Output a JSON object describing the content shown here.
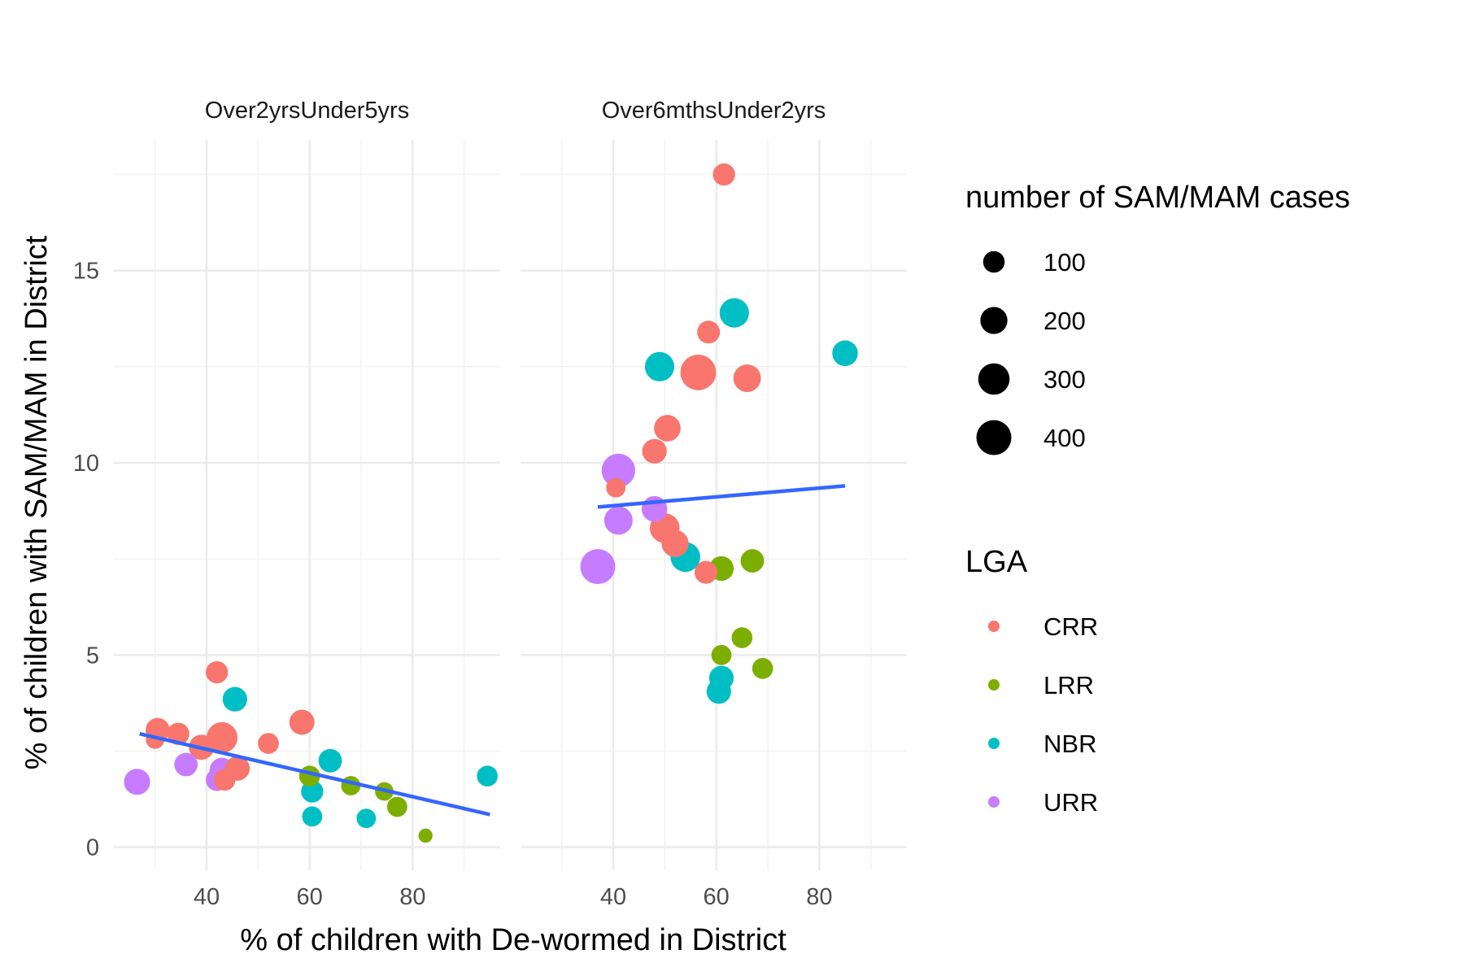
{
  "chart_data": {
    "type": "scatter",
    "xlabel": "% of children with De-wormed in District",
    "ylabel": "% of children with SAM/MAM in District",
    "xlim": [
      22,
      97
    ],
    "ylim": [
      -0.6,
      18.4
    ],
    "x_ticks": [
      40,
      60,
      80
    ],
    "y_ticks": [
      0,
      5,
      10,
      15
    ],
    "grid": true,
    "legend_position": "right",
    "size_legend": {
      "title": "number of SAM/MAM cases",
      "values": [
        100,
        200,
        300,
        400
      ]
    },
    "color_legend": {
      "title": "LGA",
      "entries": [
        {
          "label": "CRR",
          "color": "#F8766D"
        },
        {
          "label": "LRR",
          "color": "#7CAE00"
        },
        {
          "label": "NBR",
          "color": "#00BFC4"
        },
        {
          "label": "URR",
          "color": "#C77CFF"
        }
      ]
    },
    "trend_color": "#3366FF",
    "facets": [
      {
        "label": "Over2yrsUnder5yrs",
        "trend": [
          [
            27,
            2.95
          ],
          [
            95,
            0.85
          ]
        ],
        "points": [
          {
            "x": 30,
            "y": 2.8,
            "lga": "CRR",
            "n": 60
          },
          {
            "x": 30.5,
            "y": 3.05,
            "lga": "CRR",
            "n": 140
          },
          {
            "x": 34.5,
            "y": 2.95,
            "lga": "CRR",
            "n": 110
          },
          {
            "x": 39,
            "y": 2.6,
            "lga": "CRR",
            "n": 160
          },
          {
            "x": 42,
            "y": 4.55,
            "lga": "CRR",
            "n": 110
          },
          {
            "x": 43,
            "y": 2.85,
            "lga": "CRR",
            "n": 290
          },
          {
            "x": 43.5,
            "y": 1.75,
            "lga": "CRR",
            "n": 100
          },
          {
            "x": 46,
            "y": 2.05,
            "lga": "CRR",
            "n": 150
          },
          {
            "x": 52,
            "y": 2.7,
            "lga": "CRR",
            "n": 90
          },
          {
            "x": 58.5,
            "y": 3.25,
            "lga": "CRR",
            "n": 160
          },
          {
            "x": 60,
            "y": 1.85,
            "lga": "LRR",
            "n": 90
          },
          {
            "x": 68,
            "y": 1.6,
            "lga": "LRR",
            "n": 70
          },
          {
            "x": 74.5,
            "y": 1.45,
            "lga": "LRR",
            "n": 60
          },
          {
            "x": 77,
            "y": 1.05,
            "lga": "LRR",
            "n": 80
          },
          {
            "x": 82.5,
            "y": 0.3,
            "lga": "LRR",
            "n": 20
          },
          {
            "x": 45.5,
            "y": 3.85,
            "lga": "NBR",
            "n": 150
          },
          {
            "x": 64,
            "y": 2.25,
            "lga": "NBR",
            "n": 130
          },
          {
            "x": 60.5,
            "y": 1.45,
            "lga": "NBR",
            "n": 110
          },
          {
            "x": 60.5,
            "y": 0.8,
            "lga": "NBR",
            "n": 80
          },
          {
            "x": 71,
            "y": 0.75,
            "lga": "NBR",
            "n": 70
          },
          {
            "x": 94.5,
            "y": 1.85,
            "lga": "NBR",
            "n": 90
          },
          {
            "x": 26.5,
            "y": 1.7,
            "lga": "URR",
            "n": 180
          },
          {
            "x": 36,
            "y": 2.15,
            "lga": "URR",
            "n": 130
          },
          {
            "x": 42,
            "y": 1.75,
            "lga": "URR",
            "n": 110
          },
          {
            "x": 43,
            "y": 2.0,
            "lga": "URR",
            "n": 160
          }
        ]
      },
      {
        "label": "Over6mthsUnder2yrs",
        "trend": [
          [
            37,
            8.85
          ],
          [
            85,
            9.4
          ]
        ],
        "points": [
          {
            "x": 61.5,
            "y": 17.5,
            "lga": "CRR",
            "n": 110
          },
          {
            "x": 58.5,
            "y": 13.4,
            "lga": "CRR",
            "n": 120
          },
          {
            "x": 56.5,
            "y": 12.35,
            "lga": "CRR",
            "n": 420
          },
          {
            "x": 66,
            "y": 12.2,
            "lga": "CRR",
            "n": 210
          },
          {
            "x": 50.5,
            "y": 10.9,
            "lga": "CRR",
            "n": 190
          },
          {
            "x": 48,
            "y": 10.3,
            "lga": "CRR",
            "n": 150
          },
          {
            "x": 40.5,
            "y": 9.35,
            "lga": "CRR",
            "n": 70
          },
          {
            "x": 50,
            "y": 8.3,
            "lga": "CRR",
            "n": 260
          },
          {
            "x": 52,
            "y": 7.9,
            "lga": "CRR",
            "n": 200
          },
          {
            "x": 58,
            "y": 7.15,
            "lga": "CRR",
            "n": 120
          },
          {
            "x": 61,
            "y": 7.25,
            "lga": "LRR",
            "n": 150
          },
          {
            "x": 67,
            "y": 7.45,
            "lga": "LRR",
            "n": 130
          },
          {
            "x": 61,
            "y": 5.0,
            "lga": "LRR",
            "n": 80
          },
          {
            "x": 65,
            "y": 5.45,
            "lga": "LRR",
            "n": 90
          },
          {
            "x": 69,
            "y": 4.65,
            "lga": "LRR",
            "n": 90
          },
          {
            "x": 63.5,
            "y": 13.9,
            "lga": "NBR",
            "n": 250
          },
          {
            "x": 49,
            "y": 12.5,
            "lga": "NBR",
            "n": 250
          },
          {
            "x": 85,
            "y": 12.85,
            "lga": "NBR",
            "n": 170
          },
          {
            "x": 54,
            "y": 7.55,
            "lga": "NBR",
            "n": 260
          },
          {
            "x": 61,
            "y": 4.4,
            "lga": "NBR",
            "n": 150
          },
          {
            "x": 60.5,
            "y": 4.05,
            "lga": "NBR",
            "n": 150
          },
          {
            "x": 41,
            "y": 9.8,
            "lga": "URR",
            "n": 360
          },
          {
            "x": 48,
            "y": 8.8,
            "lga": "URR",
            "n": 170
          },
          {
            "x": 41,
            "y": 8.5,
            "lga": "URR",
            "n": 230
          },
          {
            "x": 37,
            "y": 7.3,
            "lga": "URR",
            "n": 400
          }
        ]
      }
    ]
  }
}
